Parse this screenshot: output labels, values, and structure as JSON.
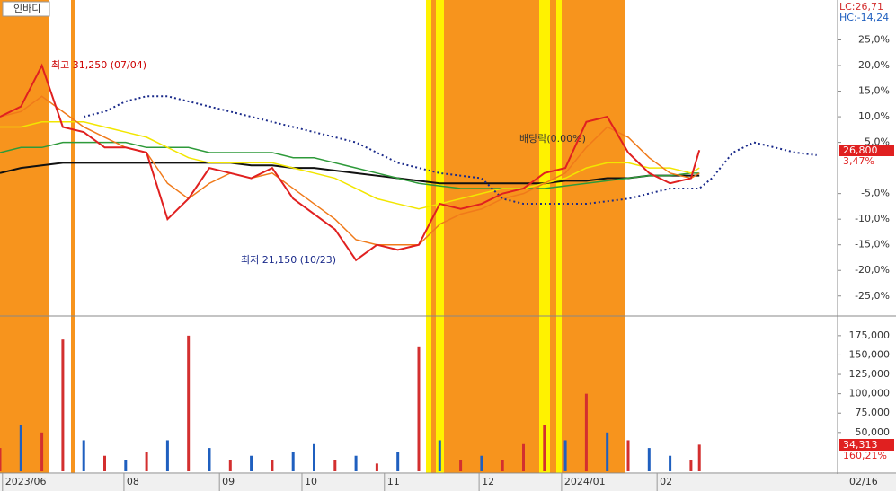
{
  "chart_data": [
    {
      "type": "line",
      "title": "인바디",
      "xlim": [
        0,
        200
      ],
      "ylim": [
        -28.9,
        32.8
      ],
      "xticks": [
        {
          "value": 0.6,
          "label": "2023/06"
        },
        {
          "value": 29.6,
          "label": "08"
        },
        {
          "value": 52.4,
          "label": "09"
        },
        {
          "value": 72.1,
          "label": "10"
        },
        {
          "value": 91.8,
          "label": "11"
        },
        {
          "value": 114.4,
          "label": "12"
        },
        {
          "value": 134.1,
          "label": "2024/01"
        },
        {
          "value": 156.9,
          "label": "02"
        }
      ],
      "yticks": [
        {
          "value": 25,
          "label": "25,0%"
        },
        {
          "value": 20,
          "label": "20,0%"
        },
        {
          "value": 15,
          "label": "15,0%"
        },
        {
          "value": 10,
          "label": "10,0%"
        },
        {
          "value": 5,
          "label": "5,0%"
        },
        {
          "value": -5,
          "label": "-5,0%"
        },
        {
          "value": -10,
          "label": "-10,0%"
        },
        {
          "value": -15,
          "label": "-15,0%"
        },
        {
          "value": -20,
          "label": "-20,0%"
        },
        {
          "value": -25,
          "label": "-25,0%"
        }
      ],
      "annotations": {
        "high": "최고 31,250 (07/04)",
        "low": "최저 21,150 (10/23)",
        "dividend": "배당락(0.00%)",
        "lc": "LC:26,71",
        "hc": "HC:-14,24",
        "price": "26,800",
        "change": "3,47%",
        "date": "02/16"
      },
      "x": [
        0,
        5,
        10,
        15,
        20,
        25,
        30,
        35,
        40,
        45,
        50,
        55,
        60,
        65,
        70,
        75,
        80,
        85,
        90,
        95,
        100,
        105,
        110,
        115,
        120,
        125,
        130,
        135,
        140,
        145,
        150,
        155,
        160,
        165,
        167,
        170,
        175,
        180,
        185,
        190,
        195
      ],
      "series": [
        {
          "color": "#111111",
          "width": 2,
          "values": [
            -1,
            0,
            0.5,
            1,
            1,
            1,
            1,
            1,
            1,
            1,
            1,
            1,
            0.5,
            0.5,
            0,
            0,
            -0.5,
            -1,
            -1.5,
            -2,
            -2.5,
            -3,
            -3,
            -3,
            -3,
            -3,
            -3,
            -2.5,
            -2.5,
            -2,
            -2,
            -1.5,
            -1.5,
            -1.5,
            -1.5,
            null,
            null,
            null,
            null,
            null,
            null
          ]
        },
        {
          "color": "#2e9a3a",
          "width": 1.5,
          "values": [
            3,
            4,
            4,
            5,
            5,
            5,
            5,
            4,
            4,
            4,
            3,
            3,
            3,
            3,
            2,
            2,
            1,
            0,
            -1,
            -2,
            -3,
            -3.5,
            -4,
            -4,
            -4,
            -4,
            -4,
            -3.5,
            -3,
            -2.5,
            -2,
            -1.5,
            -1.5,
            -1,
            -1,
            null,
            null,
            null,
            null,
            null,
            null
          ]
        },
        {
          "color": "#f2e600",
          "width": 1.5,
          "values": [
            8,
            8,
            9,
            9,
            9,
            8,
            7,
            6,
            4,
            2,
            1,
            1,
            1,
            1,
            0,
            -1,
            -2,
            -4,
            -6,
            -7,
            -8,
            -7,
            -6,
            -5,
            -4,
            -4,
            -3,
            -2,
            0,
            1,
            1,
            0,
            0,
            -1,
            0,
            null,
            null,
            null,
            null,
            null,
            null
          ]
        },
        {
          "color": "#f07a1a",
          "width": 1.5,
          "values": [
            10,
            11,
            14,
            11,
            8,
            6,
            4,
            3,
            -3,
            -6,
            -3,
            -1,
            -2,
            -1,
            -4,
            -7,
            -10,
            -14,
            -15,
            -15,
            -15,
            -11,
            -9,
            -8,
            -6,
            -5,
            -3,
            -1,
            4,
            8,
            6,
            2,
            -1,
            -2,
            -1,
            null,
            null,
            null,
            null,
            null,
            null
          ]
        },
        {
          "color": "#1a2a8a",
          "width": 2,
          "dash": "2 3",
          "values": [
            null,
            null,
            null,
            null,
            10,
            11,
            13,
            14,
            14,
            13,
            12,
            11,
            10,
            9,
            8,
            7,
            6,
            5,
            3,
            1,
            0,
            -1,
            -1.5,
            -2,
            -6,
            -7,
            -7,
            -7,
            -7,
            -6.5,
            -6,
            -5,
            -4,
            -4,
            -4,
            -2,
            3,
            5,
            4,
            3,
            2.5
          ]
        },
        {
          "color": "#e02020",
          "width": 2,
          "values": [
            10,
            12,
            20,
            8,
            7,
            4,
            4,
            3,
            -10,
            -6,
            0,
            -1,
            -2,
            0,
            -6,
            -9,
            -12,
            -18,
            -15,
            -16,
            -15,
            -7,
            -8,
            -7,
            -5,
            -4,
            -1,
            0,
            9,
            10,
            3,
            -1,
            -3,
            -2,
            3.47,
            null,
            null,
            null,
            null,
            null,
            null
          ]
        }
      ]
    },
    {
      "type": "bar",
      "xlim": [
        0,
        200
      ],
      "ylim": [
        0,
        198000
      ],
      "yticks": [
        {
          "value": 50000,
          "label": "50,000"
        },
        {
          "value": 75000,
          "label": "75,000"
        },
        {
          "value": 100000,
          "label": "100,000"
        },
        {
          "value": 125000,
          "label": "125,000"
        },
        {
          "value": 150000,
          "label": "150,000"
        },
        {
          "value": 175000,
          "label": "175,000"
        }
      ],
      "annotations": {
        "volume": "34,313",
        "ratio": "160,21%"
      },
      "x": [
        0,
        5,
        10,
        15,
        20,
        25,
        30,
        35,
        40,
        45,
        50,
        55,
        60,
        65,
        70,
        75,
        80,
        85,
        90,
        95,
        100,
        105,
        110,
        115,
        120,
        125,
        130,
        135,
        140,
        145,
        150,
        155,
        160,
        165,
        167
      ],
      "values": [
        30000,
        60000,
        50000,
        170000,
        40000,
        20000,
        15000,
        25000,
        40000,
        175000,
        30000,
        15000,
        20000,
        15000,
        25000,
        35000,
        15000,
        20000,
        10000,
        25000,
        160000,
        40000,
        15000,
        20000,
        15000,
        35000,
        60000,
        40000,
        100000,
        50000,
        40000,
        30000,
        20000,
        15000,
        34313
      ],
      "colors": [
        "#d32f2f",
        "#1f5fbf",
        "#d32f2f",
        "#d32f2f",
        "#1f5fbf",
        "#d32f2f",
        "#1f5fbf",
        "#d32f2f",
        "#1f5fbf",
        "#d32f2f",
        "#1f5fbf",
        "#d32f2f",
        "#1f5fbf",
        "#d32f2f",
        "#1f5fbf",
        "#1f5fbf",
        "#d32f2f",
        "#1f5fbf",
        "#d32f2f",
        "#1f5fbf",
        "#d32f2f",
        "#1f5fbf",
        "#d32f2f",
        "#1f5fbf",
        "#d32f2f",
        "#d32f2f",
        "#d32f2f",
        "#1f5fbf",
        "#d32f2f",
        "#1f5fbf",
        "#d32f2f",
        "#1f5fbf",
        "#1f5fbf",
        "#d32f2f",
        "#d32f2f"
      ]
    }
  ]
}
